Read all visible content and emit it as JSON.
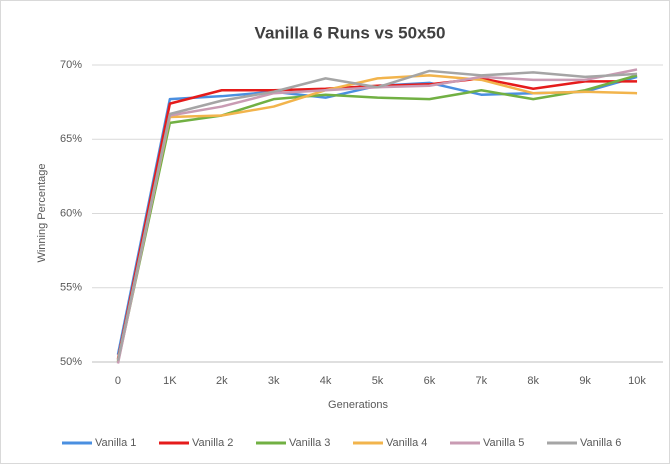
{
  "chart_data": {
    "type": "line",
    "title": "Vanilla 6 Runs vs 50x50",
    "x_label": "Generations",
    "y_label": "Winning Percentage",
    "categories": [
      "0",
      "1K",
      "2k",
      "3k",
      "4k",
      "5k",
      "6k",
      "7k",
      "8k",
      "9k",
      "10k"
    ],
    "series": [
      {
        "name": "Vanilla 1",
        "color": "#4a8fe0",
        "values": [
          50.5,
          67.7,
          67.9,
          68.2,
          67.8,
          68.6,
          68.8,
          68.0,
          68.1,
          68.2,
          69.2
        ]
      },
      {
        "name": "Vanilla 2",
        "color": "#e51b1b",
        "values": [
          50.2,
          67.4,
          68.3,
          68.3,
          68.4,
          68.6,
          68.7,
          69.1,
          68.4,
          68.9,
          68.9
        ]
      },
      {
        "name": "Vanilla 3",
        "color": "#71b043",
        "values": [
          50.0,
          66.1,
          66.6,
          67.7,
          68.0,
          67.8,
          67.7,
          68.3,
          67.7,
          68.3,
          69.3
        ]
      },
      {
        "name": "Vanilla 4",
        "color": "#f2b44c",
        "values": [
          50.1,
          66.5,
          66.6,
          67.2,
          68.3,
          69.1,
          69.3,
          69.0,
          68.1,
          68.2,
          68.1
        ]
      },
      {
        "name": "Vanilla 5",
        "color": "#c99bb3",
        "values": [
          49.9,
          66.6,
          67.2,
          68.1,
          68.3,
          68.5,
          68.6,
          69.2,
          69.0,
          69.0,
          69.7
        ]
      },
      {
        "name": "Vanilla 6",
        "color": "#a5a5a5",
        "values": [
          50.1,
          66.7,
          67.6,
          68.2,
          69.1,
          68.5,
          69.6,
          69.3,
          69.5,
          69.2,
          69.4
        ]
      }
    ],
    "ylim": [
      50,
      70
    ],
    "yticks": [
      {
        "value": 50,
        "label": "50%"
      },
      {
        "value": 55,
        "label": "55%"
      },
      {
        "value": 60,
        "label": "60%"
      },
      {
        "value": 65,
        "label": "65%"
      },
      {
        "value": 70,
        "label": "70%"
      }
    ],
    "grid": true,
    "legend": "bottom"
  }
}
